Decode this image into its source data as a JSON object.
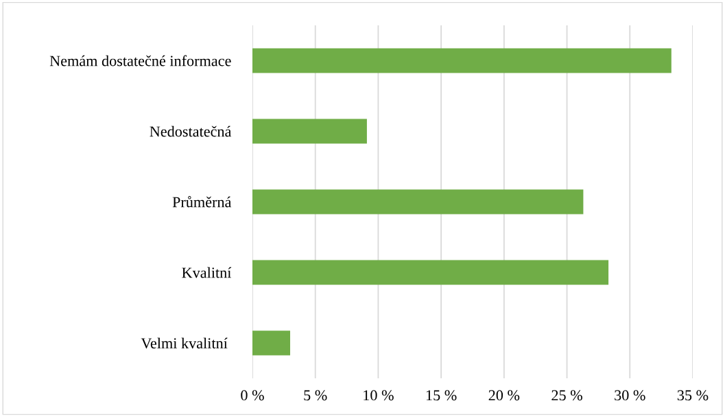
{
  "chart_data": {
    "type": "bar",
    "orientation": "horizontal",
    "categories": [
      "Nemám dostatečné informace",
      "Nedostatečná",
      "Průměrná",
      "Kvalitní",
      "Velmi kvalitní "
    ],
    "values": [
      33.3,
      9.1,
      26.3,
      28.3,
      3.0
    ],
    "color": "#70ad47",
    "xlim": [
      0,
      35
    ],
    "xticks": [
      {
        "value": 0,
        "label": "0 %"
      },
      {
        "value": 5,
        "label": "5 %"
      },
      {
        "value": 10,
        "label": "10 %"
      },
      {
        "value": 15,
        "label": "15 %"
      },
      {
        "value": 20,
        "label": "20 %"
      },
      {
        "value": 25,
        "label": "25 %"
      },
      {
        "value": 30,
        "label": "30 %"
      },
      {
        "value": 35,
        "label": "35 %"
      }
    ],
    "grid": "x",
    "legend": false
  }
}
